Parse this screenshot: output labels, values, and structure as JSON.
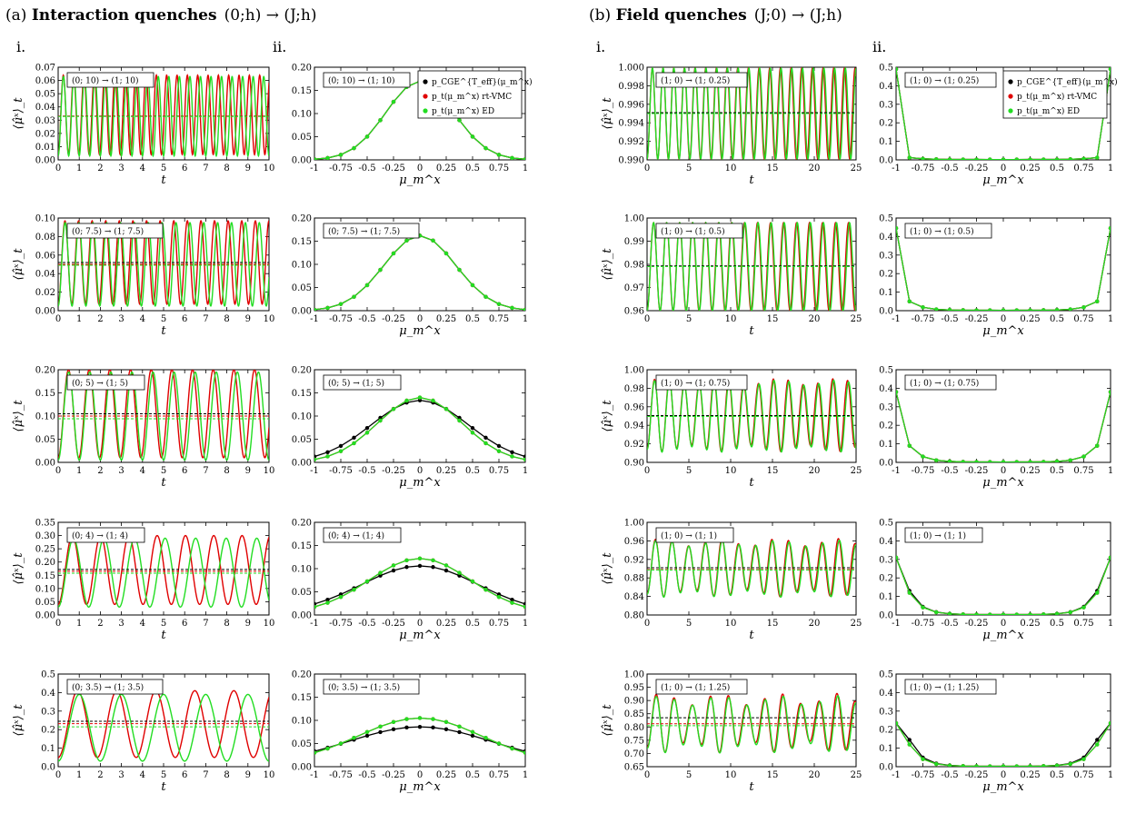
{
  "groups": [
    {
      "title_bold": "Interaction quenches",
      "title_prefix": "(a) ",
      "title_math": "(0;h) → (J;h)"
    },
    {
      "title_bold": "Field quenches",
      "title_prefix": "(b) ",
      "title_math": "(J;0) → (J;h)"
    }
  ],
  "column_labels": [
    "i.",
    "ii.",
    "i.",
    "ii."
  ],
  "legend": [
    {
      "label": "p_CGE^{T_eff}(μ_m^x)",
      "color": "#000000"
    },
    {
      "label": "p_t(μ_m^x) rt-VMC",
      "color": "#e00000"
    },
    {
      "label": "p_t(μ_m^x) ED",
      "color": "#22dd22"
    }
  ],
  "chart_data": [
    {
      "type": "line",
      "group": "a",
      "column": "i",
      "row": 0,
      "annotation": "(0; 10) → (1; 10)",
      "xlabel": "t",
      "ylabel": "⟨μ̂ˣ⟩_t",
      "xlim": [
        0,
        10
      ],
      "ylim": [
        0,
        0.07
      ],
      "xticks": [
        0,
        1,
        2,
        3,
        4,
        5,
        6,
        7,
        8,
        9,
        10
      ],
      "yticks": [
        0.0,
        0.01,
        0.02,
        0.03,
        0.04,
        0.05,
        0.06,
        0.07
      ],
      "ytick_labels": [
        "0.00",
        "0.01",
        "0.02",
        "0.03",
        "0.04",
        "0.05",
        "0.06",
        "0.07"
      ],
      "osc": {
        "mean": 0.033,
        "amp": 0.03,
        "freq": 2.0,
        "decay": 0,
        "offset_red": 0.001
      },
      "hlines": [
        {
          "y": 0.033,
          "color": "#000000"
        },
        {
          "y": 0.033,
          "color": "#e00000"
        },
        {
          "y": 0.0328,
          "color": "#22dd22"
        }
      ]
    },
    {
      "type": "line",
      "group": "a",
      "column": "i",
      "row": 1,
      "annotation": "(0; 7.5) → (1; 7.5)",
      "xlabel": "t",
      "ylabel": "⟨μ̂ˣ⟩_t",
      "xlim": [
        0,
        10
      ],
      "ylim": [
        0,
        0.1
      ],
      "xticks": [
        0,
        1,
        2,
        3,
        4,
        5,
        6,
        7,
        8,
        9,
        10
      ],
      "yticks": [
        0.0,
        0.02,
        0.04,
        0.06,
        0.08,
        0.1
      ],
      "ytick_labels": [
        "0.00",
        "0.02",
        "0.04",
        "0.06",
        "0.08",
        "0.10"
      ],
      "osc": {
        "mean": 0.05,
        "amp": 0.045,
        "freq": 1.52,
        "decay": 0,
        "offset_red": 0.002
      },
      "hlines": [
        {
          "y": 0.052,
          "color": "#000000"
        },
        {
          "y": 0.05,
          "color": "#e00000"
        },
        {
          "y": 0.049,
          "color": "#22dd22"
        }
      ]
    },
    {
      "type": "line",
      "group": "a",
      "column": "i",
      "row": 2,
      "annotation": "(0; 5) → (1; 5)",
      "xlabel": "t",
      "ylabel": "⟨μ̂ˣ⟩_t",
      "xlim": [
        0,
        10
      ],
      "ylim": [
        0,
        0.2
      ],
      "xticks": [
        0,
        1,
        2,
        3,
        4,
        5,
        6,
        7,
        8,
        9,
        10
      ],
      "yticks": [
        0.0,
        0.05,
        0.1,
        0.15,
        0.2
      ],
      "ytick_labels": [
        "0.00",
        "0.05",
        "0.10",
        "0.15",
        "0.20"
      ],
      "osc": {
        "mean": 0.1,
        "amp": 0.095,
        "freq": 1.0,
        "decay": 0,
        "offset_red": 0.005
      },
      "hlines": [
        {
          "y": 0.105,
          "color": "#000000"
        },
        {
          "y": 0.1,
          "color": "#e00000"
        },
        {
          "y": 0.094,
          "color": "#22dd22"
        }
      ]
    },
    {
      "type": "line",
      "group": "a",
      "column": "i",
      "row": 3,
      "annotation": "(0; 4) → (1; 4)",
      "xlabel": "t",
      "ylabel": "⟨μ̂ˣ⟩_t",
      "xlim": [
        0,
        10
      ],
      "ylim": [
        0,
        0.35
      ],
      "xticks": [
        0,
        1,
        2,
        3,
        4,
        5,
        6,
        7,
        8,
        9,
        10
      ],
      "yticks": [
        0.0,
        0.05,
        0.1,
        0.15,
        0.2,
        0.25,
        0.3,
        0.35
      ],
      "ytick_labels": [
        "0.00",
        "0.05",
        "0.10",
        "0.15",
        "0.20",
        "0.25",
        "0.30",
        "0.35"
      ],
      "osc": {
        "mean": 0.16,
        "amp": 0.13,
        "freq": 0.69,
        "decay": 0,
        "offset_red": 0.01
      },
      "hlines": [
        {
          "y": 0.172,
          "color": "#000000"
        },
        {
          "y": 0.165,
          "color": "#e00000"
        },
        {
          "y": 0.158,
          "color": "#22dd22"
        }
      ]
    },
    {
      "type": "line",
      "group": "a",
      "column": "i",
      "row": 4,
      "annotation": "(0; 3.5) → (1; 3.5)",
      "xlabel": "t",
      "ylabel": "⟨μ̂ˣ⟩_t",
      "xlim": [
        0,
        10
      ],
      "ylim": [
        0,
        0.5
      ],
      "xticks": [
        0,
        1,
        2,
        3,
        4,
        5,
        6,
        7,
        8,
        9,
        10
      ],
      "yticks": [
        0.0,
        0.1,
        0.2,
        0.3,
        0.4,
        0.5
      ],
      "ytick_labels": [
        "0.0",
        "0.1",
        "0.2",
        "0.3",
        "0.4",
        "0.5"
      ],
      "osc": {
        "mean": 0.21,
        "amp": 0.18,
        "freq": 0.5,
        "decay": 0,
        "offset_red": 0.02
      },
      "hlines": [
        {
          "y": 0.245,
          "color": "#000000"
        },
        {
          "y": 0.232,
          "color": "#e00000"
        },
        {
          "y": 0.215,
          "color": "#22dd22"
        }
      ]
    },
    {
      "type": "line",
      "group": "a",
      "column": "ii",
      "row": 0,
      "annotation": "(0; 10) → (1; 10)",
      "xlabel": "μ_m^x",
      "xlim": [
        -1,
        1
      ],
      "ylim": [
        0,
        0.2
      ],
      "xticks": [
        -1,
        -0.75,
        -0.5,
        -0.25,
        0,
        0.25,
        0.5,
        0.75,
        1
      ],
      "xtick_labels": [
        "-1",
        "-0.75",
        "-0.5",
        "-0.25",
        "0",
        "0.25",
        "0.5",
        "0.75",
        "1"
      ],
      "yticks": [
        0.0,
        0.05,
        0.1,
        0.15,
        0.2
      ],
      "ytick_labels": [
        "0.00",
        "0.05",
        "0.10",
        "0.15",
        "0.20"
      ],
      "dist": {
        "peak": 0.17,
        "width": 0.32,
        "edge": 0.0,
        "shape": "gauss"
      },
      "legend": true
    },
    {
      "type": "line",
      "group": "a",
      "column": "ii",
      "row": 1,
      "annotation": "(0; 7.5) → (1; 7.5)",
      "xlabel": "μ_m^x",
      "xlim": [
        -1,
        1
      ],
      "ylim": [
        0,
        0.2
      ],
      "xticks": [
        -1,
        -0.75,
        -0.5,
        -0.25,
        0,
        0.25,
        0.5,
        0.75,
        1
      ],
      "xtick_labels": [
        "-1",
        "-0.75",
        "-0.5",
        "-0.25",
        "0",
        "0.25",
        "0.5",
        "0.75",
        "1"
      ],
      "yticks": [
        0.0,
        0.05,
        0.1,
        0.15,
        0.2
      ],
      "ytick_labels": [
        "0.00",
        "0.05",
        "0.10",
        "0.15",
        "0.20"
      ],
      "dist": {
        "peak": 0.162,
        "width": 0.34,
        "edge": 0.0,
        "shape": "gauss"
      }
    },
    {
      "type": "line",
      "group": "a",
      "column": "ii",
      "row": 2,
      "annotation": "(0; 5) → (1; 5)",
      "xlabel": "μ_m^x",
      "xlim": [
        -1,
        1
      ],
      "ylim": [
        0,
        0.2
      ],
      "xticks": [
        -1,
        -0.75,
        -0.5,
        -0.25,
        0,
        0.25,
        0.5,
        0.75,
        1
      ],
      "xtick_labels": [
        "-1",
        "-0.75",
        "-0.5",
        "-0.25",
        "0",
        "0.25",
        "0.5",
        "0.75",
        "1"
      ],
      "yticks": [
        0.0,
        0.05,
        0.1,
        0.15,
        0.2
      ],
      "ytick_labels": [
        "0.00",
        "0.05",
        "0.10",
        "0.15",
        "0.20"
      ],
      "dist": {
        "peak": 0.14,
        "width": 0.4,
        "edge": 0.0,
        "shape": "gauss",
        "black_peak": 0.134
      }
    },
    {
      "type": "line",
      "group": "a",
      "column": "ii",
      "row": 3,
      "annotation": "(0; 4) → (1; 4)",
      "xlabel": "μ_m^x",
      "xlim": [
        -1,
        1
      ],
      "ylim": [
        0,
        0.2
      ],
      "xticks": [
        -1,
        -0.75,
        -0.5,
        -0.25,
        0,
        0.25,
        0.5,
        0.75,
        1
      ],
      "xtick_labels": [
        "-1",
        "-0.75",
        "-0.5",
        "-0.25",
        "0",
        "0.25",
        "0.5",
        "0.75",
        "1"
      ],
      "yticks": [
        0.0,
        0.05,
        0.1,
        0.15,
        0.2
      ],
      "ytick_labels": [
        "0.00",
        "0.05",
        "0.10",
        "0.15",
        "0.20"
      ],
      "dist": {
        "peak": 0.122,
        "width": 0.48,
        "edge": 0.004,
        "shape": "gauss",
        "black_peak": 0.106
      }
    },
    {
      "type": "line",
      "group": "a",
      "column": "ii",
      "row": 4,
      "annotation": "(0; 3.5) → (1; 3.5)",
      "xlabel": "μ_m^x",
      "xlim": [
        -1,
        1
      ],
      "ylim": [
        0,
        0.2
      ],
      "xticks": [
        -1,
        -0.75,
        -0.5,
        -0.25,
        0,
        0.25,
        0.5,
        0.75,
        1
      ],
      "xtick_labels": [
        "-1",
        "-0.75",
        "-0.5",
        "-0.25",
        "0",
        "0.25",
        "0.5",
        "0.75",
        "1"
      ],
      "yticks": [
        0.0,
        0.05,
        0.1,
        0.15,
        0.2
      ],
      "ytick_labels": [
        "0.00",
        "0.05",
        "0.10",
        "0.15",
        "0.20"
      ],
      "dist": {
        "peak": 0.105,
        "width": 0.58,
        "edge": 0.008,
        "shape": "gauss",
        "black_peak": 0.086
      }
    },
    {
      "type": "line",
      "group": "b",
      "column": "i",
      "row": 0,
      "annotation": "(1; 0) → (1; 0.25)",
      "xlabel": "t",
      "ylabel": "⟨μ̂ˣ⟩_t",
      "xlim": [
        0,
        25
      ],
      "ylim": [
        0.99,
        1.0
      ],
      "xticks": [
        0,
        5,
        10,
        15,
        20,
        25
      ],
      "yticks": [
        0.99,
        0.992,
        0.994,
        0.996,
        0.998,
        1.0
      ],
      "ytick_labels": [
        "0.990",
        "0.992",
        "0.994",
        "0.996",
        "0.998",
        "1.000"
      ],
      "osc": {
        "mean": 0.995,
        "amp": 0.0049,
        "freq": 0.78,
        "decay": 0,
        "offset_red": 0
      },
      "hlines": [
        {
          "y": 0.9951,
          "color": "#000000"
        },
        {
          "y": 0.995,
          "color": "#e00000"
        },
        {
          "y": 0.995,
          "color": "#22dd22"
        }
      ]
    },
    {
      "type": "line",
      "group": "b",
      "column": "i",
      "row": 1,
      "annotation": "(1; 0) → (1; 0.5)",
      "xlabel": "t",
      "ylabel": "⟨μ̂ˣ⟩_t",
      "xlim": [
        0,
        25
      ],
      "ylim": [
        0.96,
        1.0
      ],
      "xticks": [
        0,
        5,
        10,
        15,
        20,
        25
      ],
      "yticks": [
        0.96,
        0.97,
        0.98,
        0.99,
        1.0
      ],
      "ytick_labels": [
        "0.96",
        "0.97",
        "0.98",
        "0.99",
        "1.00"
      ],
      "osc": {
        "mean": 0.979,
        "amp": 0.019,
        "freq": 0.64,
        "decay": 0,
        "offset_red": 0
      },
      "hlines": [
        {
          "y": 0.9793,
          "color": "#000000"
        },
        {
          "y": 0.979,
          "color": "#e00000"
        },
        {
          "y": 0.979,
          "color": "#22dd22"
        }
      ]
    },
    {
      "type": "line",
      "group": "b",
      "column": "i",
      "row": 2,
      "annotation": "(1; 0) → (1; 0.75)",
      "xlabel": "t",
      "ylabel": "⟨μ̂ˣ⟩_t",
      "xlim": [
        0,
        25
      ],
      "ylim": [
        0.9,
        1.0
      ],
      "xticks": [
        0,
        5,
        10,
        15,
        20,
        25
      ],
      "yticks": [
        0.9,
        0.92,
        0.94,
        0.96,
        0.98,
        1.0
      ],
      "ytick_labels": [
        "0.90",
        "0.92",
        "0.94",
        "0.96",
        "0.98",
        "1.00"
      ],
      "osc": {
        "mean": 0.95,
        "amp": 0.036,
        "freq": 0.56,
        "decay": 0,
        "offset_red": 0.001,
        "beat": 0.08
      },
      "hlines": [
        {
          "y": 0.9505,
          "color": "#000000"
        },
        {
          "y": 0.9495,
          "color": "#e00000"
        },
        {
          "y": 0.9495,
          "color": "#22dd22"
        }
      ]
    },
    {
      "type": "line",
      "group": "b",
      "column": "i",
      "row": 3,
      "annotation": "(1; 0) → (1; 1)",
      "xlabel": "t",
      "ylabel": "⟨μ̂ˣ⟩_t",
      "xlim": [
        0,
        25
      ],
      "ylim": [
        0.8,
        1.0
      ],
      "xticks": [
        0,
        5,
        10,
        15,
        20,
        25
      ],
      "yticks": [
        0.8,
        0.84,
        0.88,
        0.92,
        0.96,
        1.0
      ],
      "ytick_labels": [
        "0.80",
        "0.84",
        "0.88",
        "0.92",
        "0.96",
        "1.00"
      ],
      "osc": {
        "mean": 0.9,
        "amp": 0.055,
        "freq": 0.5,
        "decay": 0,
        "offset_red": 0.002,
        "beat": 0.12
      },
      "hlines": [
        {
          "y": 0.902,
          "color": "#000000"
        },
        {
          "y": 0.898,
          "color": "#e00000"
        },
        {
          "y": 0.897,
          "color": "#22dd22"
        }
      ]
    },
    {
      "type": "line",
      "group": "b",
      "column": "i",
      "row": 4,
      "annotation": "(1; 0) → (1; 1.25)",
      "xlabel": "t",
      "ylabel": "⟨μ̂ˣ⟩_t",
      "xlim": [
        0,
        25
      ],
      "ylim": [
        0.65,
        1.0
      ],
      "xticks": [
        0,
        5,
        10,
        15,
        20,
        25
      ],
      "yticks": [
        0.65,
        0.7,
        0.75,
        0.8,
        0.85,
        0.9,
        0.95,
        1.0
      ],
      "ytick_labels": [
        "0.65",
        "0.70",
        "0.75",
        "0.80",
        "0.85",
        "0.90",
        "0.95",
        "1.00"
      ],
      "osc": {
        "mean": 0.81,
        "amp": 0.09,
        "freq": 0.46,
        "decay": 0,
        "offset_red": 0.005,
        "beat": 0.2
      },
      "hlines": [
        {
          "y": 0.835,
          "color": "#000000"
        },
        {
          "y": 0.812,
          "color": "#e00000"
        },
        {
          "y": 0.805,
          "color": "#22dd22"
        }
      ]
    },
    {
      "type": "line",
      "group": "b",
      "column": "ii",
      "row": 0,
      "annotation": "(1; 0) → (1; 0.25)",
      "xlabel": "μ_m^x",
      "xlim": [
        -1,
        1
      ],
      "ylim": [
        0,
        0.5
      ],
      "xticks": [
        -1,
        -0.75,
        -0.5,
        -0.25,
        0,
        0.25,
        0.5,
        0.75,
        1
      ],
      "xtick_labels": [
        "-1",
        "-0.75",
        "-0.5",
        "-0.25",
        "0",
        "0.25",
        "0.5",
        "0.75",
        "1"
      ],
      "yticks": [
        0.0,
        0.1,
        0.2,
        0.3,
        0.4,
        0.5
      ],
      "ytick_labels": [
        "0.0",
        "0.1",
        "0.2",
        "0.3",
        "0.4",
        "0.5"
      ],
      "dist": {
        "edge_val": 0.49,
        "next": 0.012,
        "shape": "edge"
      },
      "legend": true
    },
    {
      "type": "line",
      "group": "b",
      "column": "ii",
      "row": 1,
      "annotation": "(1; 0) → (1; 0.5)",
      "xlabel": "μ_m^x",
      "xlim": [
        -1,
        1
      ],
      "ylim": [
        0,
        0.5
      ],
      "xticks": [
        -1,
        -0.75,
        -0.5,
        -0.25,
        0,
        0.25,
        0.5,
        0.75,
        1
      ],
      "xtick_labels": [
        "-1",
        "-0.75",
        "-0.5",
        "-0.25",
        "0",
        "0.25",
        "0.5",
        "0.75",
        "1"
      ],
      "yticks": [
        0.0,
        0.1,
        0.2,
        0.3,
        0.4,
        0.5
      ],
      "ytick_labels": [
        "0.0",
        "0.1",
        "0.2",
        "0.3",
        "0.4",
        "0.5"
      ],
      "dist": {
        "edge_val": 0.445,
        "next": 0.05,
        "shape": "edge"
      }
    },
    {
      "type": "line",
      "group": "b",
      "column": "ii",
      "row": 2,
      "annotation": "(1; 0) → (1; 0.75)",
      "xlabel": "μ_m^x",
      "xlim": [
        -1,
        1
      ],
      "ylim": [
        0,
        0.5
      ],
      "xticks": [
        -1,
        -0.75,
        -0.5,
        -0.25,
        0,
        0.25,
        0.5,
        0.75,
        1
      ],
      "xtick_labels": [
        "-1",
        "-0.75",
        "-0.5",
        "-0.25",
        "0",
        "0.25",
        "0.5",
        "0.75",
        "1"
      ],
      "yticks": [
        0.0,
        0.1,
        0.2,
        0.3,
        0.4,
        0.5
      ],
      "ytick_labels": [
        "0.0",
        "0.1",
        "0.2",
        "0.3",
        "0.4",
        "0.5"
      ],
      "dist": {
        "edge_val": 0.38,
        "next": 0.09,
        "shape": "edge"
      }
    },
    {
      "type": "line",
      "group": "b",
      "column": "ii",
      "row": 3,
      "annotation": "(1; 0) → (1; 1)",
      "xlabel": "μ_m^x",
      "xlim": [
        -1,
        1
      ],
      "ylim": [
        0,
        0.5
      ],
      "xticks": [
        -1,
        -0.75,
        -0.5,
        -0.25,
        0,
        0.25,
        0.5,
        0.75,
        1
      ],
      "xtick_labels": [
        "-1",
        "-0.75",
        "-0.5",
        "-0.25",
        "0",
        "0.25",
        "0.5",
        "0.75",
        "1"
      ],
      "yticks": [
        0.0,
        0.1,
        0.2,
        0.3,
        0.4,
        0.5
      ],
      "ytick_labels": [
        "0.0",
        "0.1",
        "0.2",
        "0.3",
        "0.4",
        "0.5"
      ],
      "dist": {
        "edge_val": 0.31,
        "next": 0.12,
        "shape": "edge",
        "black_next": 0.13
      }
    },
    {
      "type": "line",
      "group": "b",
      "column": "ii",
      "row": 4,
      "annotation": "(1; 0) → (1; 1.25)",
      "xlabel": "μ_m^x",
      "xlim": [
        -1,
        1
      ],
      "ylim": [
        0,
        0.5
      ],
      "xticks": [
        -1,
        -0.75,
        -0.5,
        -0.25,
        0,
        0.25,
        0.5,
        0.75,
        1
      ],
      "xtick_labels": [
        "-1",
        "-0.75",
        "-0.5",
        "-0.25",
        "0",
        "0.25",
        "0.5",
        "0.75",
        "1"
      ],
      "yticks": [
        0.0,
        0.1,
        0.2,
        0.3,
        0.4,
        0.5
      ],
      "ytick_labels": [
        "0.0",
        "0.1",
        "0.2",
        "0.3",
        "0.4",
        "0.5"
      ],
      "dist": {
        "edge_val": 0.235,
        "next": 0.12,
        "shape": "edge",
        "black_next": 0.145
      }
    }
  ]
}
